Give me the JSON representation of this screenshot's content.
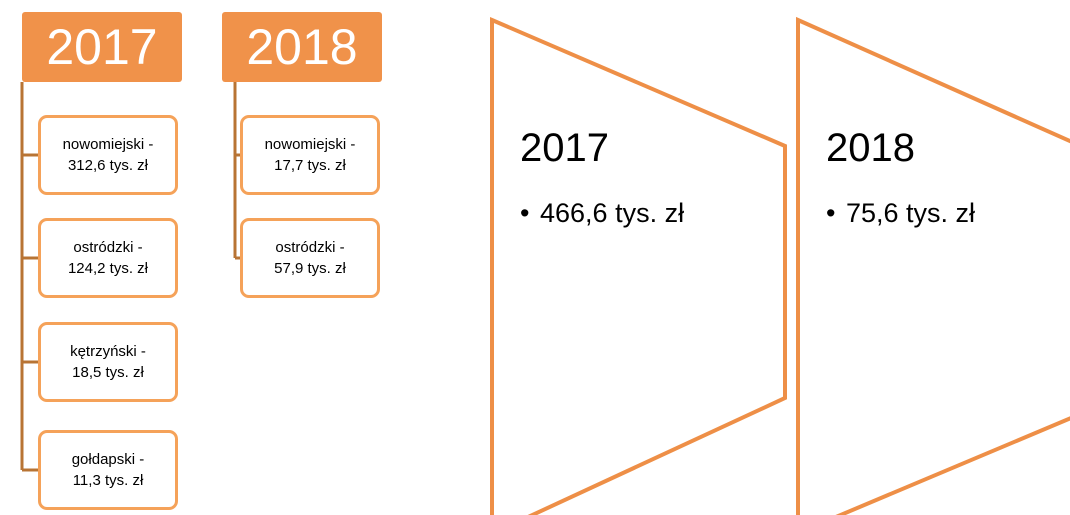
{
  "groups": [
    {
      "title": "2017",
      "items": [
        [
          "nowomiejski -",
          "312,6 tys. zł"
        ],
        [
          "ostródzki -",
          "124,2 tys. zł"
        ],
        [
          "kętrzyński -",
          "18,5 tys. zł"
        ],
        [
          "gołdapski -",
          "11,3 tys. zł"
        ]
      ]
    },
    {
      "title": "2018",
      "items": [
        [
          "nowomiejski -",
          "17,7 tys. zł"
        ],
        [
          "ostródzki -",
          "57,9 tys. zł"
        ]
      ]
    }
  ],
  "summary": [
    {
      "title": "2017",
      "bullet": "466,6 tys. zł"
    },
    {
      "title": "2018",
      "bullet": "75,6 tys. zł"
    }
  ]
}
